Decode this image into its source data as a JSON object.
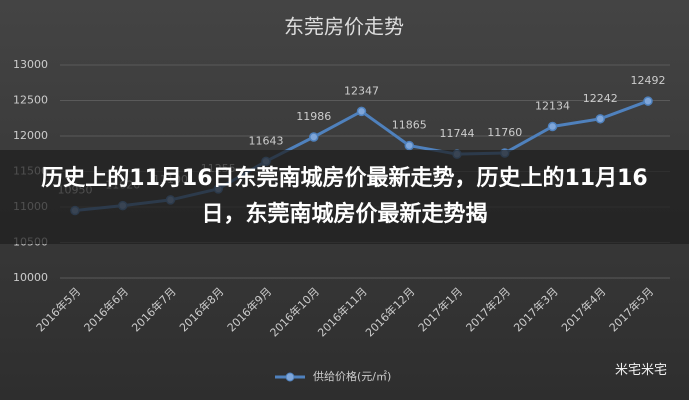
{
  "chart_data": {
    "type": "line",
    "title": "东莞房价走势",
    "categories": [
      "2016年5月",
      "2016年6月",
      "2016年7月",
      "2016年8月",
      "2016年9月",
      "2016年10月",
      "2016年11月",
      "2016年12月",
      "2017年1月",
      "2017年2月",
      "2017年3月",
      "2017年4月",
      "2017年5月"
    ],
    "series": [
      {
        "name": "供给价格(元/㎡)",
        "color": "#4f81bd",
        "values": [
          10950,
          11020,
          11100,
          11255,
          11643,
          11986,
          12347,
          11865,
          11744,
          11760,
          12134,
          12242,
          12492
        ]
      }
    ],
    "ylim": [
      10000,
      13000
    ],
    "yticks": [
      10000,
      10500,
      11000,
      11500,
      12000,
      12500,
      13000
    ],
    "grid": true,
    "legend": "bottom"
  },
  "overlay": {
    "headline": "历史上的11月16日东莞南城房价最新走势，历史上的11月16日，东莞南城房价最新走势揭",
    "watermark": "米宅米宅"
  }
}
